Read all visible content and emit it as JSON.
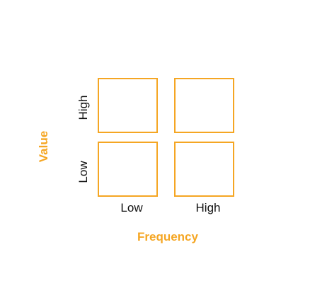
{
  "matrix": {
    "quadrants": [
      {
        "row": "High",
        "column": "Low"
      },
      {
        "row": "High",
        "column": "High"
      },
      {
        "row": "Low",
        "column": "Low"
      },
      {
        "row": "Low",
        "column": "High"
      }
    ],
    "x_axis": {
      "title": "Frequency",
      "tick_labels": [
        "Low",
        "High"
      ]
    },
    "y_axis": {
      "title": "Value",
      "tick_labels": [
        "High",
        "Low"
      ]
    }
  },
  "colors": {
    "accent": "#f5a623",
    "text": "#111111",
    "background": "#ffffff"
  }
}
